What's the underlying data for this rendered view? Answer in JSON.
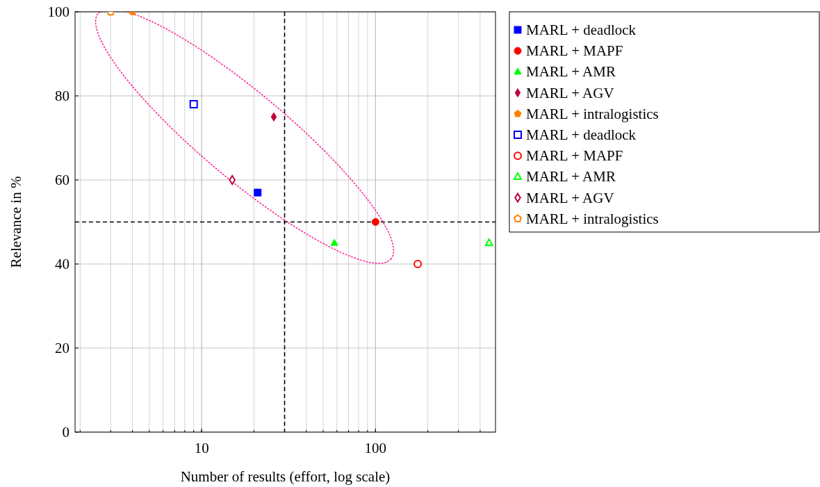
{
  "chart_data": {
    "type": "scatter",
    "xlabel": "Number of results (effort, log scale)",
    "ylabel": "Relevance in %",
    "log": "x",
    "grid": true,
    "legend": "top right",
    "xlim": [
      1.87,
      490
    ],
    "xticks": [
      10,
      100
    ],
    "ylim": [
      0,
      100
    ],
    "yticks": [
      0,
      20,
      40,
      60,
      80,
      100
    ],
    "ref_lines": [
      {
        "axis": "x",
        "value": 30,
        "line_style": "dashed",
        "color": "#000000"
      },
      {
        "axis": "y",
        "value": 50,
        "line_style": "dashed",
        "color": "#000000"
      }
    ],
    "series": [
      {
        "name": "MARL + deadlock",
        "color": "#0000ff",
        "marker": "square",
        "x": [
          21
        ],
        "values": [
          57
        ]
      },
      {
        "name": "MARL + MAPF",
        "color": "#ff0000",
        "marker": "circle",
        "x": [
          100
        ],
        "values": [
          50
        ]
      },
      {
        "name": "MARL + AMR",
        "color": "#00ff00",
        "marker": "triangle",
        "x": [
          58
        ],
        "values": [
          45
        ]
      },
      {
        "name": "MARL + AGV",
        "color": "#bf0040",
        "marker": "diamond",
        "x": [
          26
        ],
        "values": [
          75
        ]
      },
      {
        "name": "MARL + intralogistics",
        "color": "#ff8000",
        "x": [
          4
        ],
        "values": [
          100
        ]
      },
      {
        "name": "MARL + deadlock",
        "color": "#0000ff",
        "marker": "square",
        "x": [
          9
        ],
        "values": [
          78
        ]
      },
      {
        "name": "MARL + MAPF",
        "color": "#ff0000",
        "marker": "circle",
        "x": [
          175
        ],
        "values": [
          40
        ]
      },
      {
        "name": "MARL + AMR",
        "color": "#00ff00",
        "marker": "triangle",
        "x": [
          450
        ],
        "values": [
          45
        ]
      },
      {
        "name": "MARL + AGV",
        "color": "#bf0040",
        "marker": "diamond",
        "x": [
          15
        ],
        "values": [
          60
        ]
      },
      {
        "name": "MARL + intralogistics",
        "color": "#ff8000",
        "x": [
          3
        ],
        "values": [
          100
        ]
      }
    ]
  }
}
